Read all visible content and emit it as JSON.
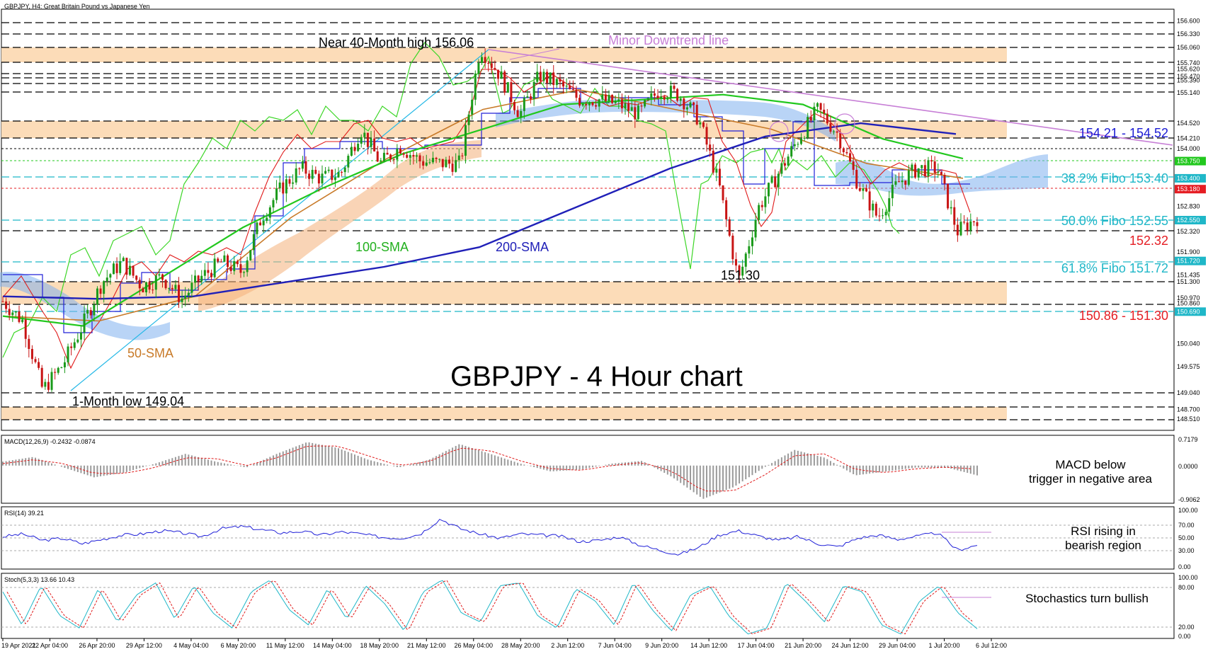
{
  "header": {
    "symbol_line": "GBPJPY, H4:  Great Britain Pound vs Japanese Yen"
  },
  "main": {
    "chart_title": "GBPJPY - 4 Hour chart",
    "annotations": {
      "high": "Near 40-Month high 156.06",
      "downtrend": "Minor Downtrend line",
      "low": "1-Month low 149.04",
      "low_1730": "151.30",
      "sma100": "100-SMA",
      "sma200": "200-SMA",
      "sma50": "50-SMA"
    },
    "levels": {
      "zone_top": "154.21 - 154.52",
      "fib382": "38.2% Fibo 153.40",
      "fib500": "50.0% Fibo 152.55",
      "level_15232": "152.32",
      "fib618": "61.8% Fibo 151.72",
      "zone_low": "150.86 - 151.30"
    },
    "price_axis": [
      "156.600",
      "156.330",
      "156.060",
      "155.740",
      "155.620",
      "155.470",
      "155.390",
      "155.140",
      "154.520",
      "154.210",
      "154.000",
      "153.750",
      "153.400",
      "153.180",
      "152.830",
      "152.550",
      "152.320",
      "151.900",
      "151.720",
      "151.435",
      "151.300",
      "150.970",
      "150.860",
      "150.690",
      "150.040",
      "149.575",
      "149.040",
      "148.700",
      "148.510"
    ]
  },
  "macd": {
    "label": "MACD(12,26,9) -0.2432 -0.0874",
    "axis": [
      "0.7179",
      "0.0000",
      "-0.9062"
    ],
    "note_line1": "MACD below",
    "note_line2": "trigger in negative area"
  },
  "rsi": {
    "label": "RSI(14) 39.21",
    "axis": [
      "100.00",
      "70.00",
      "50.00",
      "30.00",
      "0.00"
    ],
    "note_line1": "RSI rising in",
    "note_line2": "bearish region"
  },
  "stoch": {
    "label": "Stoch(5,3,3) 13.66 10.43",
    "axis": [
      "100.00",
      "80.00",
      "20.00",
      "0.00"
    ],
    "note": "Stochastics turn bullish"
  },
  "time_axis": [
    "19 Apr 2021",
    "22 Apr 04:00",
    "26 Apr 20:00",
    "29 Apr 12:00",
    "4 May 04:00",
    "6 May 20:00",
    "11 May 12:00",
    "14 May 04:00",
    "18 May 20:00",
    "21 May 12:00",
    "26 May 04:00",
    "28 May 20:00",
    "2 Jun 12:00",
    "7 Jun 04:00",
    "9 Jun 20:00",
    "14 Jun 12:00",
    "17 Jun 04:00",
    "21 Jun 20:00",
    "24 Jun 12:00",
    "29 Jun 04:00",
    "1 Jul 20:00",
    "6 Jul 12:00"
  ],
  "colors": {
    "zone_fill": "#fcdcb8",
    "fib_cyan": "#1fb7c8",
    "red_level": "#e51d23",
    "blue_level": "#1a1ad4",
    "sma100": "#22c81e",
    "sma200": "#2020b8",
    "sma50": "#c87a28",
    "tenkan": "#e01a1a",
    "kijun": "#2020d8",
    "chikou": "#3cd626",
    "violet": "#c77fd6"
  },
  "chart_data": [
    {
      "type": "candlestick",
      "title": "GBPJPY - 4 Hour chart",
      "ylim": [
        148.4,
        156.7
      ],
      "close_path": [
        [
          "19 Apr 2021",
          150.9
        ],
        [
          "21 Apr",
          150.5
        ],
        [
          "22 Apr 04:00",
          149.1
        ],
        [
          "23 Apr",
          149.6
        ],
        [
          "26 Apr 20:00",
          150.4
        ],
        [
          "27 Apr",
          151.3
        ],
        [
          "28 Apr",
          151.7
        ],
        [
          "29 Apr 12:00",
          151.2
        ],
        [
          "30 Apr",
          151.4
        ],
        [
          "3 May",
          150.95
        ],
        [
          "4 May 04:00",
          151.4
        ],
        [
          "5 May",
          151.7
        ],
        [
          "6 May 20:00",
          151.5
        ],
        [
          "7 May",
          152.6
        ],
        [
          "10 May",
          153.2
        ],
        [
          "11 May 12:00",
          153.6
        ],
        [
          "13 May",
          153.4
        ],
        [
          "14 May 04:00",
          153.5
        ],
        [
          "17 May",
          154.4
        ],
        [
          "18 May 20:00",
          153.7
        ],
        [
          "20 May",
          154.05
        ],
        [
          "21 May 12:00",
          153.75
        ],
        [
          "25 May",
          153.7
        ],
        [
          "26 May 04:00",
          153.7
        ],
        [
          "27 May",
          156.06
        ],
        [
          "28 May 20:00",
          155.5
        ],
        [
          "1 Jun",
          154.7
        ],
        [
          "2 Jun 12:00",
          155.5
        ],
        [
          "4 Jun",
          155.3
        ],
        [
          "7 Jun 04:00",
          155.0
        ],
        [
          "8 Jun",
          155.0
        ],
        [
          "9 Jun 20:00",
          154.9
        ],
        [
          "11 Jun",
          154.7
        ],
        [
          "14 Jun 12:00",
          155.2
        ],
        [
          "15 Jun",
          155.1
        ],
        [
          "16 Jun",
          154.6
        ],
        [
          "17 Jun 04:00",
          153.3
        ],
        [
          "18 Jun",
          151.3
        ],
        [
          "21 Jun 20:00",
          152.8
        ],
        [
          "22 Jun",
          153.5
        ],
        [
          "23 Jun",
          154.2
        ],
        [
          "24 Jun 12:00",
          154.8
        ],
        [
          "25 Jun",
          154.3
        ],
        [
          "28 Jun",
          153.3
        ],
        [
          "29 Jun 04:00",
          152.6
        ],
        [
          "30 Jun",
          153.3
        ],
        [
          "1 Jul 20:00",
          153.6
        ],
        [
          "5 Jul",
          153.6
        ],
        [
          "6 Jul",
          152.32
        ],
        [
          "6 Jul 12:00",
          152.6
        ]
      ],
      "series": [
        {
          "name": "100-SMA",
          "values": [
            150.6,
            150.4,
            151.4,
            152.4,
            153.2,
            153.9,
            154.4,
            154.9,
            155.0,
            155.1,
            154.9,
            154.2,
            153.8
          ]
        },
        {
          "name": "200-SMA",
          "values": [
            151.0,
            150.95,
            151.0,
            151.3,
            151.6,
            152.0,
            152.8,
            153.6,
            154.25,
            154.52,
            154.3
          ]
        },
        {
          "name": "50-SMA",
          "values": [
            150.6,
            150.5,
            151.0,
            152.6,
            153.8,
            154.8,
            155.2,
            154.8,
            154.4,
            153.7,
            153.4
          ]
        }
      ],
      "levels": [
        {
          "value": 154.21,
          "label": "154.21 - 154.52",
          "kind": "zone"
        },
        {
          "value": 153.4,
          "label": "38.2% Fibo 153.40",
          "kind": "fibo"
        },
        {
          "value": 152.55,
          "label": "50.0% Fibo 152.55",
          "kind": "fibo"
        },
        {
          "value": 152.32,
          "label": "152.32",
          "kind": "support"
        },
        {
          "value": 151.72,
          "label": "61.8% Fibo 151.72",
          "kind": "fibo"
        },
        {
          "value": 150.86,
          "label": "150.86 - 151.30",
          "kind": "zone"
        }
      ]
    },
    {
      "type": "bar",
      "title": "MACD(12,26,9) -0.2432 -0.0874",
      "ylim": [
        -0.9062,
        0.7179
      ],
      "values": [
        0.1,
        0.22,
        -0.05,
        -0.3,
        -0.18,
        0.05,
        0.3,
        0.1,
        -0.05,
        0.3,
        0.6,
        0.45,
        0.15,
        -0.05,
        0.15,
        0.55,
        0.3,
        0.05,
        -0.15,
        -0.1,
        0.05,
        0.12,
        -0.3,
        -0.85,
        -0.55,
        -0.05,
        0.4,
        0.2,
        -0.25,
        -0.15,
        -0.05,
        -0.05,
        -0.25
      ],
      "signal": [
        0.05,
        0.15,
        0.05,
        -0.2,
        -0.2,
        -0.05,
        0.2,
        0.18,
        0.0,
        0.2,
        0.5,
        0.5,
        0.25,
        0.0,
        0.1,
        0.45,
        0.38,
        0.12,
        -0.08,
        -0.12,
        0.0,
        0.08,
        -0.15,
        -0.65,
        -0.65,
        -0.25,
        0.25,
        0.3,
        -0.1,
        -0.18,
        -0.08,
        -0.04,
        -0.09
      ]
    },
    {
      "type": "line",
      "title": "RSI(14) 39.21",
      "ylim": [
        0,
        100
      ],
      "values": [
        55,
        60,
        48,
        52,
        42,
        50,
        58,
        60,
        66,
        62,
        55,
        70,
        74,
        68,
        62,
        65,
        58,
        64,
        60,
        54,
        52,
        60,
        88,
        70,
        60,
        52,
        60,
        58,
        56,
        46,
        48,
        55,
        40,
        30,
        22,
        35,
        58,
        66,
        56,
        48,
        55,
        42,
        36,
        52,
        58,
        50,
        56,
        62,
        30,
        39.21
      ]
    },
    {
      "type": "line",
      "title": "Stoch(5,3,3) 13.66 10.43",
      "ylim": [
        0,
        100
      ],
      "values": [
        75,
        20,
        85,
        35,
        15,
        80,
        25,
        70,
        90,
        30,
        85,
        40,
        15,
        75,
        95,
        45,
        20,
        80,
        30,
        85,
        55,
        10,
        75,
        95,
        40,
        25,
        85,
        90,
        35,
        15,
        80,
        60,
        20,
        90,
        45,
        10,
        70,
        85,
        35,
        5,
        15,
        90,
        60,
        25,
        85,
        75,
        20,
        5,
        60,
        85,
        40,
        13.66
      ]
    }
  ]
}
